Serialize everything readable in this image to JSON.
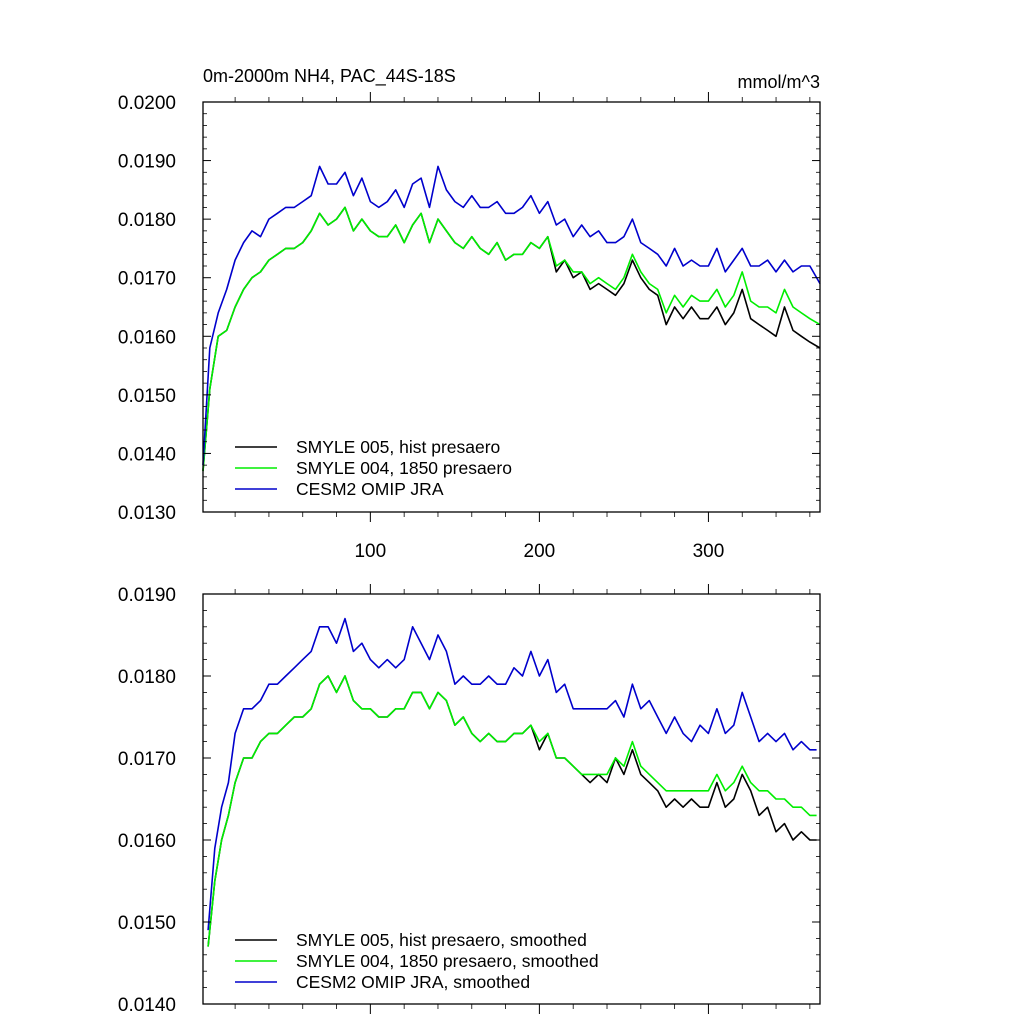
{
  "chart_data": [
    {
      "type": "line",
      "title": "0m-2000m NH4, PAC_44S-18S",
      "units": "mmol/m^3",
      "xlim": [
        1,
        366
      ],
      "ylim": [
        0.013,
        0.02
      ],
      "y_ticks": [
        0.013,
        0.014,
        0.015,
        0.016,
        0.017,
        0.018,
        0.019,
        0.02
      ],
      "y_tick_labels": [
        "0.0130",
        "0.0140",
        "0.0150",
        "0.0160",
        "0.0170",
        "0.0180",
        "0.0190",
        "0.0200"
      ],
      "x_ticks": [
        100,
        200,
        300
      ],
      "x_tick_labels": [
        "100",
        "200",
        "300"
      ],
      "grid": false,
      "legend_position": "bottom-left",
      "series": [
        {
          "name": "SMYLE 005, hist presaero",
          "color": "#000000",
          "x": [
            1,
            5,
            10,
            15,
            20,
            25,
            30,
            35,
            40,
            45,
            50,
            55,
            60,
            65,
            70,
            75,
            80,
            85,
            90,
            95,
            100,
            105,
            110,
            115,
            120,
            125,
            130,
            135,
            140,
            145,
            150,
            155,
            160,
            165,
            170,
            175,
            180,
            185,
            190,
            195,
            200,
            205,
            210,
            215,
            220,
            225,
            230,
            235,
            240,
            245,
            250,
            255,
            260,
            265,
            270,
            275,
            280,
            285,
            290,
            295,
            300,
            305,
            310,
            315,
            320,
            325,
            330,
            335,
            340,
            345,
            350,
            355,
            360,
            366
          ],
          "values": [
            0.0137,
            0.0151,
            0.016,
            0.0161,
            0.0165,
            0.0168,
            0.017,
            0.0171,
            0.0173,
            0.0174,
            0.0175,
            0.0175,
            0.0176,
            0.0178,
            0.0181,
            0.0179,
            0.018,
            0.0182,
            0.0178,
            0.018,
            0.0178,
            0.0177,
            0.0177,
            0.0179,
            0.0176,
            0.0179,
            0.0181,
            0.0176,
            0.018,
            0.0178,
            0.0176,
            0.0175,
            0.0177,
            0.0175,
            0.0174,
            0.0176,
            0.0173,
            0.0174,
            0.0174,
            0.0176,
            0.0175,
            0.0177,
            0.0171,
            0.0173,
            0.017,
            0.0171,
            0.0168,
            0.0169,
            0.0168,
            0.0167,
            0.0169,
            0.0173,
            0.017,
            0.0168,
            0.0167,
            0.0162,
            0.0165,
            0.0163,
            0.0165,
            0.0163,
            0.0163,
            0.0165,
            0.0162,
            0.0164,
            0.0168,
            0.0163,
            0.0162,
            0.0161,
            0.016,
            0.0165,
            0.0161,
            0.016,
            0.0159,
            0.0158
          ]
        },
        {
          "name": "SMYLE 004, 1850 presaero",
          "color": "#00ee00",
          "x": [
            1,
            5,
            10,
            15,
            20,
            25,
            30,
            35,
            40,
            45,
            50,
            55,
            60,
            65,
            70,
            75,
            80,
            85,
            90,
            95,
            100,
            105,
            110,
            115,
            120,
            125,
            130,
            135,
            140,
            145,
            150,
            155,
            160,
            165,
            170,
            175,
            180,
            185,
            190,
            195,
            200,
            205,
            210,
            215,
            220,
            225,
            230,
            235,
            240,
            245,
            250,
            255,
            260,
            265,
            270,
            275,
            280,
            285,
            290,
            295,
            300,
            305,
            310,
            315,
            320,
            325,
            330,
            335,
            340,
            345,
            350,
            355,
            360,
            366
          ],
          "values": [
            0.0137,
            0.0151,
            0.016,
            0.0161,
            0.0165,
            0.0168,
            0.017,
            0.0171,
            0.0173,
            0.0174,
            0.0175,
            0.0175,
            0.0176,
            0.0178,
            0.0181,
            0.0179,
            0.018,
            0.0182,
            0.0178,
            0.018,
            0.0178,
            0.0177,
            0.0177,
            0.0179,
            0.0176,
            0.0179,
            0.0181,
            0.0176,
            0.018,
            0.0178,
            0.0176,
            0.0175,
            0.0177,
            0.0175,
            0.0174,
            0.0176,
            0.0173,
            0.0174,
            0.0174,
            0.0176,
            0.0175,
            0.0177,
            0.0172,
            0.0173,
            0.0171,
            0.0171,
            0.0169,
            0.017,
            0.0169,
            0.0168,
            0.017,
            0.0174,
            0.0171,
            0.0169,
            0.0168,
            0.0164,
            0.0167,
            0.0165,
            0.0167,
            0.0166,
            0.0166,
            0.0168,
            0.0165,
            0.0167,
            0.0171,
            0.0166,
            0.0165,
            0.0165,
            0.0164,
            0.0168,
            0.0165,
            0.0164,
            0.0163,
            0.0162
          ]
        },
        {
          "name": "CESM2 OMIP JRA",
          "color": "#0000cc",
          "x": [
            1,
            5,
            10,
            15,
            20,
            25,
            30,
            35,
            40,
            45,
            50,
            55,
            60,
            65,
            70,
            75,
            80,
            85,
            90,
            95,
            100,
            105,
            110,
            115,
            120,
            125,
            130,
            135,
            140,
            145,
            150,
            155,
            160,
            165,
            170,
            175,
            180,
            185,
            190,
            195,
            200,
            205,
            210,
            215,
            220,
            225,
            230,
            235,
            240,
            245,
            250,
            255,
            260,
            265,
            270,
            275,
            280,
            285,
            290,
            295,
            300,
            305,
            310,
            315,
            320,
            325,
            330,
            335,
            340,
            345,
            350,
            355,
            360,
            366
          ],
          "values": [
            0.0138,
            0.0158,
            0.0164,
            0.0168,
            0.0173,
            0.0176,
            0.0178,
            0.0177,
            0.018,
            0.0181,
            0.0182,
            0.0182,
            0.0183,
            0.0184,
            0.0189,
            0.0186,
            0.0186,
            0.0188,
            0.0184,
            0.0187,
            0.0183,
            0.0182,
            0.0183,
            0.0185,
            0.0182,
            0.0186,
            0.0187,
            0.0182,
            0.0189,
            0.0185,
            0.0183,
            0.0182,
            0.0184,
            0.0182,
            0.0182,
            0.0183,
            0.0181,
            0.0181,
            0.0182,
            0.0184,
            0.0181,
            0.0183,
            0.0179,
            0.018,
            0.0177,
            0.0179,
            0.0177,
            0.0178,
            0.0176,
            0.0176,
            0.0177,
            0.018,
            0.0176,
            0.0175,
            0.0174,
            0.0172,
            0.0175,
            0.0172,
            0.0173,
            0.0172,
            0.0172,
            0.0175,
            0.0171,
            0.0173,
            0.0175,
            0.0172,
            0.0172,
            0.0173,
            0.0171,
            0.0173,
            0.0171,
            0.0172,
            0.0172,
            0.0169
          ]
        }
      ]
    },
    {
      "type": "line",
      "title": "",
      "xlim": [
        1,
        366
      ],
      "ylim": [
        0.014,
        0.019
      ],
      "y_ticks": [
        0.014,
        0.015,
        0.016,
        0.017,
        0.018,
        0.019
      ],
      "y_tick_labels": [
        "0.0140",
        "0.0150",
        "0.0160",
        "0.0170",
        "0.0180",
        "0.0190"
      ],
      "x_ticks": [
        100,
        200,
        300
      ],
      "x_tick_labels": [],
      "grid": false,
      "legend_position": "bottom-left",
      "series": [
        {
          "name": "SMYLE 005, hist presaero, smoothed",
          "color": "#000000",
          "x": [
            4,
            8,
            12,
            16,
            20,
            25,
            30,
            35,
            40,
            45,
            50,
            55,
            60,
            65,
            70,
            75,
            80,
            85,
            90,
            95,
            100,
            105,
            110,
            115,
            120,
            125,
            130,
            135,
            140,
            145,
            150,
            155,
            160,
            165,
            170,
            175,
            180,
            185,
            190,
            195,
            200,
            205,
            210,
            215,
            220,
            225,
            230,
            235,
            240,
            245,
            250,
            255,
            260,
            265,
            270,
            275,
            280,
            285,
            290,
            295,
            300,
            305,
            310,
            315,
            320,
            325,
            330,
            335,
            340,
            345,
            350,
            355,
            360,
            364
          ],
          "values": [
            0.0147,
            0.0155,
            0.016,
            0.0163,
            0.0167,
            0.017,
            0.017,
            0.0172,
            0.0173,
            0.0173,
            0.0174,
            0.0175,
            0.0175,
            0.0176,
            0.0179,
            0.018,
            0.0178,
            0.018,
            0.0177,
            0.0176,
            0.0176,
            0.0175,
            0.0175,
            0.0176,
            0.0176,
            0.0178,
            0.0178,
            0.0176,
            0.0178,
            0.0177,
            0.0174,
            0.0175,
            0.0173,
            0.0172,
            0.0173,
            0.0172,
            0.0172,
            0.0173,
            0.0173,
            0.0174,
            0.0171,
            0.0173,
            0.017,
            0.017,
            0.0169,
            0.0168,
            0.0167,
            0.0168,
            0.0167,
            0.017,
            0.0168,
            0.0171,
            0.0168,
            0.0167,
            0.0166,
            0.0164,
            0.0165,
            0.0164,
            0.0165,
            0.0164,
            0.0164,
            0.0167,
            0.0164,
            0.0165,
            0.0168,
            0.0166,
            0.0163,
            0.0164,
            0.0161,
            0.0162,
            0.016,
            0.0161,
            0.016,
            0.016
          ]
        },
        {
          "name": "SMYLE 004, 1850 presaero, smoothed",
          "color": "#00ee00",
          "x": [
            4,
            8,
            12,
            16,
            20,
            25,
            30,
            35,
            40,
            45,
            50,
            55,
            60,
            65,
            70,
            75,
            80,
            85,
            90,
            95,
            100,
            105,
            110,
            115,
            120,
            125,
            130,
            135,
            140,
            145,
            150,
            155,
            160,
            165,
            170,
            175,
            180,
            185,
            190,
            195,
            200,
            205,
            210,
            215,
            220,
            225,
            230,
            235,
            240,
            245,
            250,
            255,
            260,
            265,
            270,
            275,
            280,
            285,
            290,
            295,
            300,
            305,
            310,
            315,
            320,
            325,
            330,
            335,
            340,
            345,
            350,
            355,
            360,
            364
          ],
          "values": [
            0.0147,
            0.0155,
            0.016,
            0.0163,
            0.0167,
            0.017,
            0.017,
            0.0172,
            0.0173,
            0.0173,
            0.0174,
            0.0175,
            0.0175,
            0.0176,
            0.0179,
            0.018,
            0.0178,
            0.018,
            0.0177,
            0.0176,
            0.0176,
            0.0175,
            0.0175,
            0.0176,
            0.0176,
            0.0178,
            0.0178,
            0.0176,
            0.0178,
            0.0177,
            0.0174,
            0.0175,
            0.0173,
            0.0172,
            0.0173,
            0.0172,
            0.0172,
            0.0173,
            0.0173,
            0.0174,
            0.0172,
            0.0173,
            0.017,
            0.017,
            0.0169,
            0.0168,
            0.0168,
            0.0168,
            0.0168,
            0.017,
            0.0169,
            0.0172,
            0.0169,
            0.0168,
            0.0167,
            0.0166,
            0.0166,
            0.0166,
            0.0166,
            0.0166,
            0.0166,
            0.0168,
            0.0166,
            0.0167,
            0.0169,
            0.0167,
            0.0166,
            0.0166,
            0.0165,
            0.0165,
            0.0164,
            0.0164,
            0.0163,
            0.0163
          ]
        },
        {
          "name": "CESM2 OMIP JRA, smoothed",
          "color": "#0000cc",
          "x": [
            4,
            8,
            12,
            16,
            20,
            25,
            30,
            35,
            40,
            45,
            50,
            55,
            60,
            65,
            70,
            75,
            80,
            85,
            90,
            95,
            100,
            105,
            110,
            115,
            120,
            125,
            130,
            135,
            140,
            145,
            150,
            155,
            160,
            165,
            170,
            175,
            180,
            185,
            190,
            195,
            200,
            205,
            210,
            215,
            220,
            225,
            230,
            235,
            240,
            245,
            250,
            255,
            260,
            265,
            270,
            275,
            280,
            285,
            290,
            295,
            300,
            305,
            310,
            315,
            320,
            325,
            330,
            335,
            340,
            345,
            350,
            355,
            360,
            364
          ],
          "values": [
            0.0149,
            0.0159,
            0.0164,
            0.0167,
            0.0173,
            0.0176,
            0.0176,
            0.0177,
            0.0179,
            0.0179,
            0.018,
            0.0181,
            0.0182,
            0.0183,
            0.0186,
            0.0186,
            0.0184,
            0.0187,
            0.0183,
            0.0184,
            0.0182,
            0.0181,
            0.0182,
            0.0181,
            0.0182,
            0.0186,
            0.0184,
            0.0182,
            0.0185,
            0.0183,
            0.0179,
            0.018,
            0.0179,
            0.0179,
            0.018,
            0.0179,
            0.0179,
            0.0181,
            0.018,
            0.0183,
            0.018,
            0.0182,
            0.0178,
            0.0179,
            0.0176,
            0.0176,
            0.0176,
            0.0176,
            0.0176,
            0.0177,
            0.0175,
            0.0179,
            0.0176,
            0.0177,
            0.0175,
            0.0173,
            0.0175,
            0.0173,
            0.0172,
            0.0174,
            0.0173,
            0.0176,
            0.0173,
            0.0174,
            0.0178,
            0.0175,
            0.0172,
            0.0173,
            0.0172,
            0.0173,
            0.0171,
            0.0172,
            0.0171,
            0.0171
          ]
        }
      ]
    }
  ]
}
